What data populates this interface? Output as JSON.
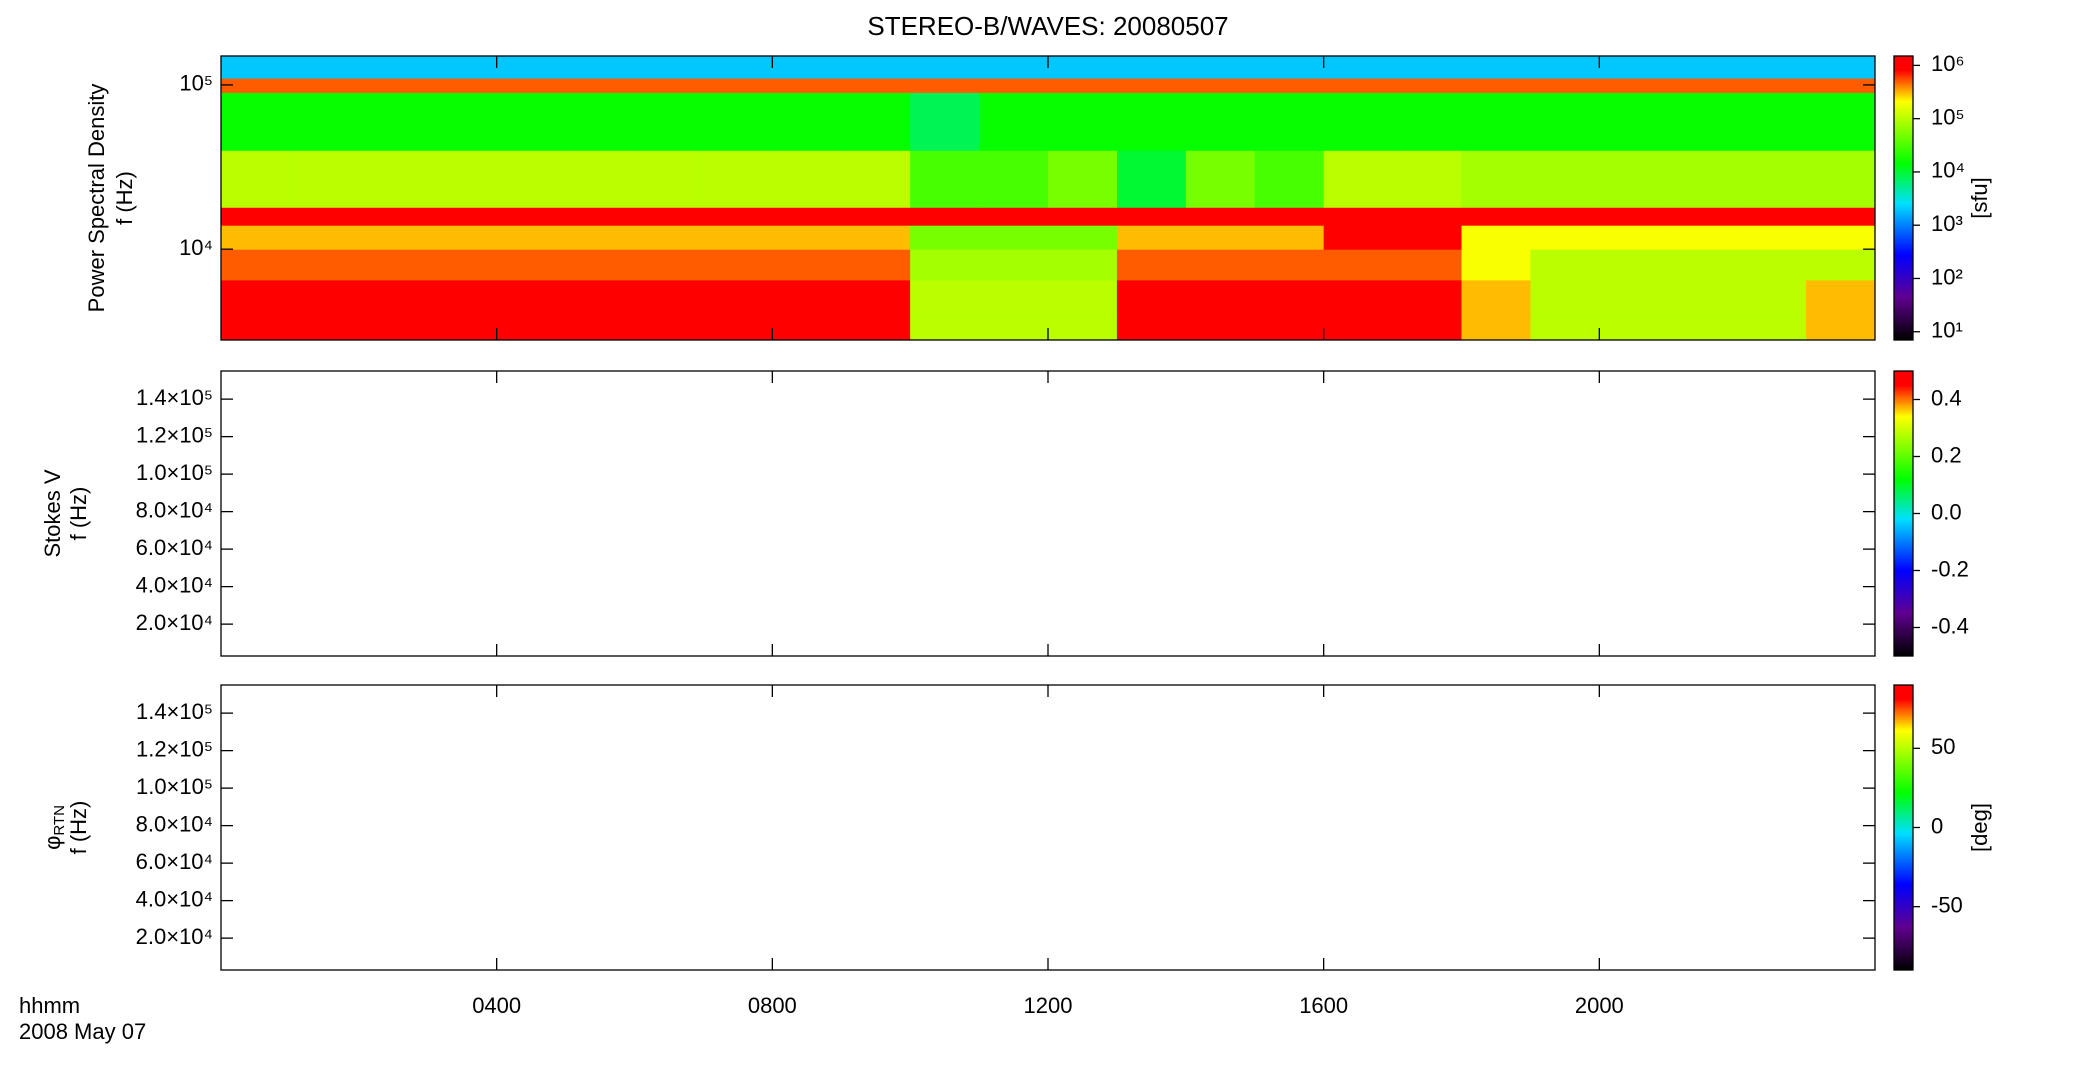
{
  "chart_data": [
    {
      "type": "heatmap",
      "title": "STEREO-B/WAVES: 20080507",
      "ylabel": [
        "Power Spectral Density",
        "f (Hz)"
      ],
      "ylog": true,
      "ylim": [
        2800,
        150000
      ],
      "yticks": [
        {
          "value": 10000,
          "label": "10⁴"
        },
        {
          "value": 100000,
          "label": "10⁵"
        }
      ],
      "x": [
        0.5,
        1.5,
        2.5,
        3.5,
        4.5,
        5.5,
        6.5,
        7.5,
        8.5,
        9.5,
        10.5,
        11.5,
        12.5,
        13.5,
        14.5,
        15.5,
        16.5,
        17.5,
        18.5,
        19.5,
        20.5,
        21.5,
        22.5,
        23.5
      ],
      "ybins": [
        2800,
        4000,
        6500,
        10000,
        14000,
        18000,
        40000,
        90000,
        110000,
        150000
      ],
      "z": [
        [
          1000000.0,
          1000000.0,
          1000000.0,
          1000000.0,
          1000000.0,
          1000000.0,
          1000000.0,
          1000000.0,
          1000000.0,
          1000000.0,
          100000.0,
          100000.0,
          100000.0,
          1000000.0,
          1000000.0,
          1000000.0,
          1000000.0,
          1000000.0,
          300000.0,
          100000.0,
          100000.0,
          100000.0,
          100000.0,
          300000.0
        ],
        [
          1000000.0,
          1000000.0,
          1000000.0,
          1000000.0,
          1000000.0,
          1000000.0,
          1000000.0,
          1000000.0,
          1000000.0,
          1000000.0,
          100000.0,
          100000.0,
          100000.0,
          1000000.0,
          1000000.0,
          1000000.0,
          1000000.0,
          1000000.0,
          300000.0,
          100000.0,
          100000.0,
          100000.0,
          100000.0,
          300000.0
        ],
        [
          500000.0,
          500000.0,
          500000.0,
          500000.0,
          500000.0,
          500000.0,
          500000.0,
          500000.0,
          500000.0,
          500000.0,
          80000.0,
          80000.0,
          80000.0,
          500000.0,
          500000.0,
          500000.0,
          500000.0,
          500000.0,
          200000.0,
          100000.0,
          100000.0,
          100000.0,
          100000.0,
          100000.0
        ],
        [
          300000.0,
          300000.0,
          300000.0,
          300000.0,
          300000.0,
          300000.0,
          300000.0,
          300000.0,
          300000.0,
          300000.0,
          50000.0,
          50000.0,
          50000.0,
          300000.0,
          300000.0,
          300000.0,
          1000000.0,
          1000000.0,
          200000.0,
          200000.0,
          200000.0,
          200000.0,
          200000.0,
          200000.0
        ],
        [
          1000000.0,
          1000000.0,
          1000000.0,
          1000000.0,
          1000000.0,
          1000000.0,
          1000000.0,
          1000000.0,
          1000000.0,
          1000000.0,
          1000000.0,
          1000000.0,
          1000000.0,
          1000000.0,
          1000000.0,
          1000000.0,
          1000000.0,
          1000000.0,
          1000000.0,
          1000000.0,
          1000000.0,
          1000000.0,
          1000000.0,
          1000000.0
        ],
        [
          100000.0,
          100000.0,
          100000.0,
          100000.0,
          100000.0,
          100000.0,
          100000.0,
          100000.0,
          100000.0,
          100000.0,
          30000.0,
          30000.0,
          50000.0,
          10000.0,
          50000.0,
          30000.0,
          100000.0,
          100000.0,
          80000.0,
          80000.0,
          80000.0,
          80000.0,
          80000.0,
          80000.0
        ],
        [
          15000.0,
          15000.0,
          15000.0,
          15000.0,
          15000.0,
          15000.0,
          15000.0,
          15000.0,
          15000.0,
          15000.0,
          8000.0,
          15000.0,
          15000.0,
          15000.0,
          15000.0,
          15000.0,
          15000.0,
          15000.0,
          15000.0,
          15000.0,
          15000.0,
          15000.0,
          15000.0,
          15000.0
        ],
        [
          500000.0,
          500000.0,
          500000.0,
          500000.0,
          500000.0,
          500000.0,
          500000.0,
          500000.0,
          500000.0,
          500000.0,
          500000.0,
          500000.0,
          500000.0,
          500000.0,
          500000.0,
          500000.0,
          500000.0,
          500000.0,
          500000.0,
          500000.0,
          500000.0,
          500000.0,
          500000.0,
          500000.0
        ],
        [
          2000.0,
          2000.0,
          2000.0,
          2000.0,
          2000.0,
          2000.0,
          2000.0,
          2000.0,
          2000.0,
          2000.0,
          2000.0,
          2000.0,
          2000.0,
          2000.0,
          2000.0,
          2000.0,
          2000.0,
          2000.0,
          2000.0,
          2000.0,
          2000.0,
          2000.0,
          2000.0,
          2000.0
        ]
      ],
      "clog": true,
      "clim": [
        7,
        1500000
      ],
      "clabel": "[sfu]",
      "cticks": [
        {
          "value": 10,
          "label": "10¹"
        },
        {
          "value": 100,
          "label": "10²"
        },
        {
          "value": 1000,
          "label": "10³"
        },
        {
          "value": 10000,
          "label": "10⁴"
        },
        {
          "value": 100000,
          "label": "10⁵"
        },
        {
          "value": 1000000,
          "label": "10⁶"
        }
      ]
    },
    {
      "type": "heatmap",
      "ylabel": [
        "Stokes V",
        "f (Hz)"
      ],
      "ylim": [
        3000,
        155000
      ],
      "yticks": [
        {
          "value": 20000,
          "label": "2.0×10⁴"
        },
        {
          "value": 40000,
          "label": "4.0×10⁴"
        },
        {
          "value": 60000,
          "label": "6.0×10⁴"
        },
        {
          "value": 80000,
          "label": "8.0×10⁴"
        },
        {
          "value": 100000,
          "label": "1.0×10⁵"
        },
        {
          "value": 120000,
          "label": "1.2×10⁵"
        },
        {
          "value": 140000,
          "label": "1.4×10⁵"
        }
      ],
      "clim": [
        -0.5,
        0.5
      ],
      "cticks": [
        -0.4,
        -0.2,
        {
          "value": 0,
          "label": "0.0"
        },
        0.2,
        0.4
      ]
    },
    {
      "type": "heatmap",
      "ylabel": [
        "φ",
        "f (Hz)"
      ],
      "ylabel_sub": "RTN",
      "ylim": [
        3000,
        155000
      ],
      "yticks": [
        {
          "value": 20000,
          "label": "2.0×10⁴"
        },
        {
          "value": 40000,
          "label": "4.0×10⁴"
        },
        {
          "value": 60000,
          "label": "6.0×10⁴"
        },
        {
          "value": 80000,
          "label": "8.0×10⁴"
        },
        {
          "value": 100000,
          "label": "1.0×10⁵"
        },
        {
          "value": 120000,
          "label": "1.2×10⁵"
        },
        {
          "value": 140000,
          "label": "1.4×10⁵"
        }
      ],
      "clim": [
        -90,
        90
      ],
      "clabel": "[deg]",
      "cticks": [
        -50,
        0,
        50
      ],
      "xlim": [
        0,
        24
      ],
      "xticks": [
        {
          "value": 4,
          "label": "0400"
        },
        {
          "value": 8,
          "label": "0800"
        },
        {
          "value": 12,
          "label": "1200"
        },
        {
          "value": 16,
          "label": "1600"
        },
        {
          "value": 20,
          "label": "2000"
        }
      ],
      "xlabel": [
        "hhmm",
        "2008 May 07"
      ]
    }
  ]
}
